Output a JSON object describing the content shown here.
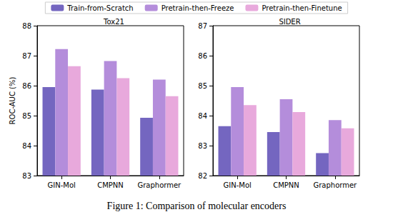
{
  "chart_data": [
    {
      "type": "bar",
      "title": "Tox21",
      "y_label": "ROC-AUC (%)",
      "legend": "top",
      "categories": [
        "GIN-Mol",
        "CMPNN",
        "Graphormer"
      ],
      "series": [
        {
          "name": "Train-from-Scratch",
          "color": "#7466c0",
          "values": [
            85.95,
            85.87,
            84.93
          ]
        },
        {
          "name": "Pretrain-then-Freeze",
          "color": "#b48ddb",
          "values": [
            87.22,
            86.82,
            86.2
          ]
        },
        {
          "name": "Pretrain-then-Finetune",
          "color": "#e8a9dc",
          "values": [
            86.65,
            86.25,
            85.65
          ]
        }
      ],
      "ylim": [
        83,
        88
      ],
      "yticks": [
        83,
        84,
        85,
        86,
        87,
        88
      ],
      "grid": false
    },
    {
      "type": "bar",
      "title": "SIDER",
      "categories": [
        "GIN-Mol",
        "CMPNN",
        "Graphormer"
      ],
      "series": [
        {
          "name": "Train-from-Scratch",
          "color": "#7466c0",
          "values": [
            83.65,
            83.45,
            82.75
          ]
        },
        {
          "name": "Pretrain-then-Freeze",
          "color": "#b48ddb",
          "values": [
            84.95,
            84.55,
            83.85
          ]
        },
        {
          "name": "Pretrain-then-Finetune",
          "color": "#e8a9dc",
          "values": [
            84.35,
            84.12,
            83.58
          ]
        }
      ],
      "ylim": [
        82,
        87
      ],
      "yticks": [
        82,
        83,
        84,
        85,
        86,
        87
      ],
      "grid": false
    }
  ],
  "caption": "Figure 1: Comparison of molecular encoders"
}
